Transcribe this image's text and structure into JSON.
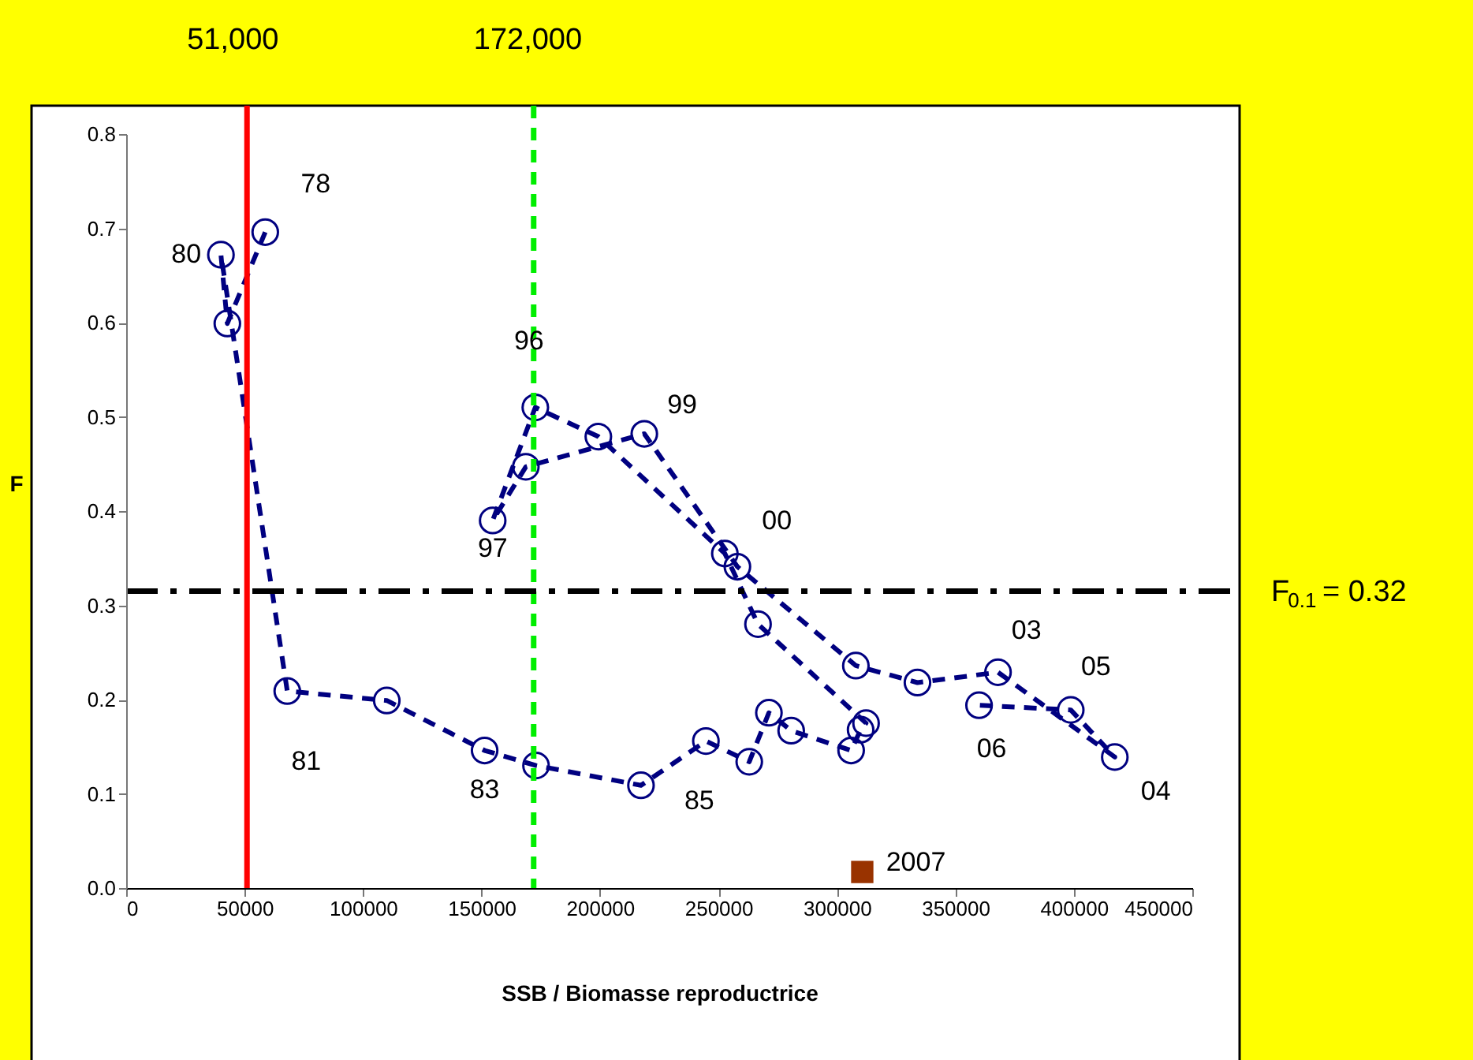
{
  "chart_data": {
    "type": "line",
    "xlabel": "SSB / Biomasse reproductrice",
    "ylabel": "F",
    "xlim": [
      0,
      450000
    ],
    "xticks": [
      0,
      50000,
      100000,
      150000,
      200000,
      250000,
      300000,
      350000,
      400000,
      450000
    ],
    "ylim": [
      0,
      0.8
    ],
    "yticks": [
      {
        "value": 0,
        "label": "0.0"
      },
      0.1,
      0.2,
      0.3,
      0.4,
      0.5,
      0.6,
      0.7,
      0.8
    ],
    "grid": false,
    "marker": "circle",
    "line_style": "dashed",
    "series": [
      {
        "color": "#000080",
        "x": [
          58700,
          42700,
          40000,
          68000,
          110000,
          151300,
          173000,
          217300,
          244700,
          263000,
          271300,
          280700,
          306000,
          310000,
          312300,
          266700,
          252700,
          199300,
          172700,
          154700,
          168700,
          218700,
          258000,
          308000,
          334000,
          368000,
          417300,
          398700,
          360000
        ],
        "values": [
          0.696,
          0.599,
          0.672,
          0.209,
          0.199,
          0.146,
          0.13,
          0.109,
          0.156,
          0.134,
          0.186,
          0.167,
          0.146,
          0.168,
          0.175,
          0.28,
          0.355,
          0.479,
          0.51,
          0.39,
          0.447,
          0.482,
          0.341,
          0.236,
          0.218,
          0.229,
          0.139,
          0.189,
          0.194
        ]
      },
      {
        "type": "scatter",
        "marker": "square",
        "color": "#993300",
        "x": [
          310700
        ],
        "values": [
          0.017
        ]
      }
    ],
    "ref_lines": [
      {
        "axis": "x",
        "value": 51000,
        "label": "51,000",
        "color": "#ff0000",
        "line_style": "solid"
      },
      {
        "axis": "x",
        "value": 172000,
        "label": "172,000",
        "color": "#00ee00",
        "line_style": "dashed"
      },
      {
        "axis": "y",
        "value": 0.315,
        "label": "F$_{0.1}$ = 0.32",
        "color": "#000000",
        "line_style": "dashed"
      }
    ],
    "annotations": [
      {
        "text": "78",
        "x": 58700,
        "y": 0.696
      },
      {
        "text": "80",
        "x": 40000,
        "y": 0.672
      },
      {
        "text": "81",
        "x": 68000,
        "y": 0.209
      },
      {
        "text": "83",
        "x": 151300,
        "y": 0.146
      },
      {
        "text": "85",
        "x": 217300,
        "y": 0.109
      },
      {
        "text": "96",
        "x": 172700,
        "y": 0.51
      },
      {
        "text": "97",
        "x": 154700,
        "y": 0.39
      },
      {
        "text": "99",
        "x": 218700,
        "y": 0.482
      },
      {
        "text": "00",
        "x": 258000,
        "y": 0.341
      },
      {
        "text": "03",
        "x": 368000,
        "y": 0.229
      },
      {
        "text": "04",
        "x": 417300,
        "y": 0.139
      },
      {
        "text": "05",
        "x": 398700,
        "y": 0.189
      },
      {
        "text": "06",
        "x": 360000,
        "y": 0.194
      },
      {
        "text": "2007",
        "x": 310700,
        "y": 0.017
      }
    ]
  }
}
